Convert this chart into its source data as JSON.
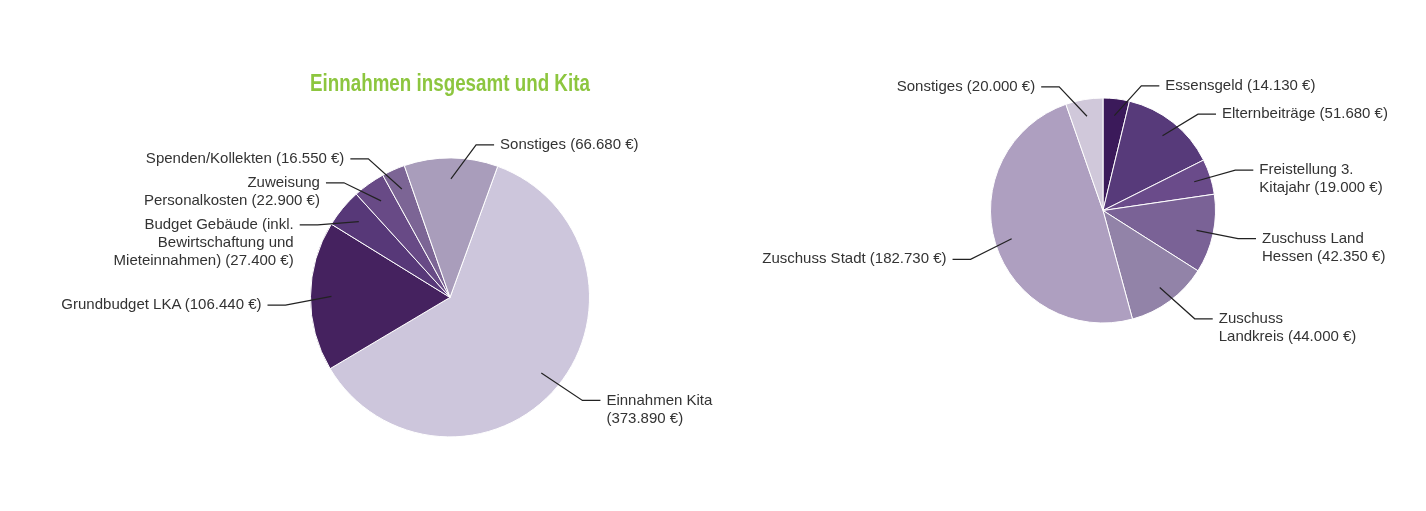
{
  "chart_data": [
    {
      "type": "pie",
      "title": "Einnahmen insgesamt und Kita",
      "categories": [
        "Einnahmen Kita",
        "Grundbudget LKA",
        "Budget Gebäude (inkl. Bewirtschaftung und Mieteinnahmen)",
        "Zuweisung Personalkosten",
        "Spenden/Kollekten",
        "Sonstiges"
      ],
      "values": [
        373890,
        106440,
        27400,
        22900,
        16550,
        66680
      ],
      "value_labels": [
        "(373.890 €)",
        "(106.440 €)",
        "(27.400 €)",
        "(22.900 €)",
        "(16.550 €)",
        "(66.680 €)"
      ],
      "colors": [
        "#cdc6dc",
        "#45225f",
        "#573878",
        "#684a86",
        "#7c6595",
        "#a99dbb"
      ]
    },
    {
      "type": "pie",
      "categories": [
        "Essensgeld",
        "Elternbeiträge",
        "Freistellung 3. Kitajahr",
        "Zuschuss Land Hessen",
        "Zuschuss Landkreis",
        "Zuschuss Stadt",
        "Sonstiges"
      ],
      "values": [
        14130,
        51680,
        19000,
        42350,
        44000,
        182730,
        20000
      ],
      "value_labels": [
        "(14.130 €)",
        "(51.680 €)",
        "(19.000 €)",
        "(42.350 €)",
        "(44.000 €)",
        "(182.730 €)",
        "(20.000 €)"
      ],
      "colors": [
        "#3b1a5a",
        "#573a7a",
        "#6a4b8a",
        "#7a6296",
        "#9283a8",
        "#ae9fc0",
        "#d0c8da"
      ]
    }
  ]
}
